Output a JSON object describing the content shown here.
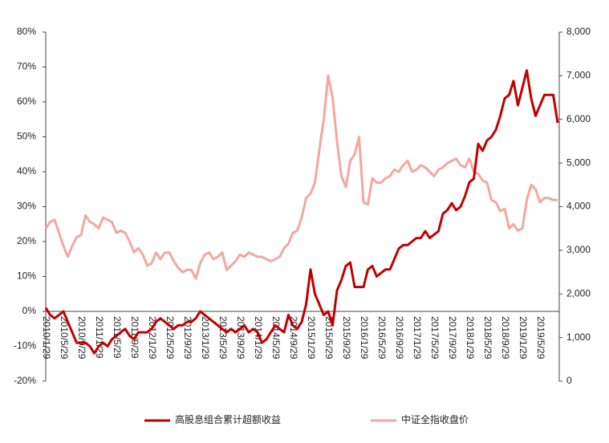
{
  "chart_data": {
    "type": "line",
    "categories": [
      "2010/1/29",
      null,
      null,
      null,
      "2010/5/29",
      null,
      null,
      null,
      "2010/9/29",
      null,
      null,
      null,
      "2011/1/29",
      null,
      null,
      null,
      "2011/5/29",
      null,
      null,
      null,
      "2011/9/29",
      null,
      null,
      null,
      "2012/1/29",
      null,
      null,
      null,
      "2012/5/29",
      null,
      null,
      null,
      "2012/9/29",
      null,
      null,
      null,
      "2013/1/29",
      null,
      null,
      null,
      "2013/5/29",
      null,
      null,
      null,
      "2013/9/29",
      null,
      null,
      null,
      "2014/1/29",
      null,
      null,
      null,
      "2014/5/29",
      null,
      null,
      null,
      "2014/9/29",
      null,
      null,
      null,
      "2015/1/29",
      null,
      null,
      null,
      "2015/5/29",
      null,
      null,
      null,
      "2015/9/29",
      null,
      null,
      null,
      "2016/1/29",
      null,
      null,
      null,
      "2016/5/29",
      null,
      null,
      null,
      "2016/9/29",
      null,
      null,
      null,
      "2017/1/29",
      null,
      null,
      null,
      "2017/5/29",
      null,
      null,
      null,
      "2017/9/29",
      null,
      null,
      null,
      "2018/1/29",
      null,
      null,
      null,
      "2018/5/29",
      null,
      null,
      null,
      "2018/9/29",
      null,
      null,
      null,
      "2019/1/29",
      null,
      null,
      null,
      "2019/5/29",
      null,
      null,
      null,
      null
    ],
    "series": [
      {
        "name": "高股息组合累计超额收益",
        "color": "#c00000",
        "axis": "y",
        "values": [
          1,
          -1,
          -2,
          -1,
          0,
          -3,
          -6,
          -9,
          -9,
          -9,
          -10,
          -12,
          -10,
          -9,
          -10,
          -8,
          -7,
          -6,
          -5,
          -7,
          -8,
          -6,
          -6,
          -6,
          -5,
          -3,
          -2,
          -3,
          -4,
          -5,
          -4,
          -4,
          -3,
          -3,
          -2,
          0,
          -1,
          -2,
          -3,
          -4,
          -5,
          -6,
          -5,
          -6,
          -5,
          -4,
          -6,
          -5,
          -6,
          -9,
          -8,
          -6,
          -4,
          -5,
          -6,
          -1,
          -4,
          -5,
          -3,
          2,
          12,
          5,
          2,
          -1,
          0,
          -4,
          6,
          9,
          13,
          14,
          7,
          7,
          7,
          12,
          13,
          10,
          11,
          12,
          12,
          15,
          18,
          19,
          19,
          20,
          21,
          21,
          23,
          21,
          22,
          23,
          28,
          29,
          31,
          29,
          30,
          33,
          37,
          38,
          48,
          46,
          49,
          50,
          52,
          56,
          61,
          62,
          66,
          59,
          64,
          69,
          61,
          56,
          59,
          62,
          62,
          62,
          54
        ]
      },
      {
        "name": "中证全指收盘价",
        "color": "#f4a6a0",
        "axis": "y2",
        "values": [
          3500,
          3650,
          3700,
          3400,
          3100,
          2850,
          3100,
          3300,
          3350,
          3800,
          3650,
          3600,
          3500,
          3750,
          3700,
          3650,
          3400,
          3450,
          3400,
          3200,
          2950,
          3050,
          2900,
          2650,
          2700,
          2950,
          2800,
          2950,
          2950,
          2750,
          2600,
          2500,
          2550,
          2550,
          2350,
          2700,
          2900,
          2950,
          2800,
          2850,
          2950,
          2550,
          2650,
          2750,
          2900,
          2850,
          2950,
          2900,
          2850,
          2850,
          2800,
          2750,
          2800,
          2850,
          3050,
          3150,
          3400,
          3450,
          3750,
          4200,
          4300,
          4550,
          5300,
          6000,
          7000,
          6500,
          5500,
          4700,
          4450,
          5050,
          5200,
          5600,
          4100,
          4050,
          4650,
          4550,
          4550,
          4650,
          4700,
          4850,
          4800,
          4950,
          5050,
          4800,
          4850,
          4950,
          4900,
          4800,
          4700,
          4850,
          4900,
          5000,
          5050,
          5100,
          4950,
          4900,
          5100,
          4800,
          4750,
          4600,
          4550,
          4150,
          4100,
          3900,
          3950,
          3500,
          3600,
          3450,
          3500,
          4150,
          4500,
          4400,
          4100,
          4200,
          4200,
          4150,
          4150
        ]
      }
    ],
    "ylim": [
      -20,
      80
    ],
    "yticks": [
      {
        "value": -20,
        "label": "-20%"
      },
      {
        "value": -10,
        "label": "-10%"
      },
      {
        "value": 0,
        "label": "0%"
      },
      {
        "value": 10,
        "label": "10%"
      },
      {
        "value": 20,
        "label": "20%"
      },
      {
        "value": 30,
        "label": "30%"
      },
      {
        "value": 40,
        "label": "40%"
      },
      {
        "value": 50,
        "label": "50%"
      },
      {
        "value": 60,
        "label": "60%"
      },
      {
        "value": 70,
        "label": "70%"
      },
      {
        "value": 80,
        "label": "80%"
      }
    ],
    "y2lim": [
      0,
      8000
    ],
    "y2ticks": [
      0,
      {
        "value": 1000,
        "label": "1,000"
      },
      {
        "value": 2000,
        "label": "2,000"
      },
      {
        "value": 3000,
        "label": "3,000"
      },
      {
        "value": 4000,
        "label": "4,000"
      },
      {
        "value": 5000,
        "label": "5,000"
      },
      {
        "value": 6000,
        "label": "6,000"
      },
      {
        "value": 7000,
        "label": "7,000"
      },
      {
        "value": 8000,
        "label": "8,000"
      }
    ],
    "grid": false,
    "legend": "bottom"
  }
}
